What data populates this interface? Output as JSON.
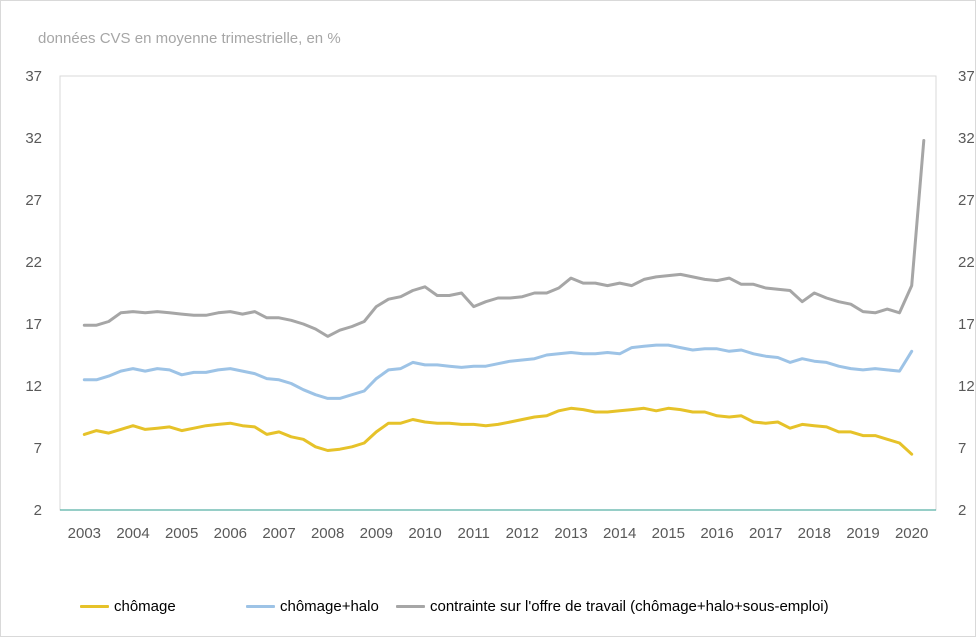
{
  "chart_data": {
    "type": "line",
    "title": "",
    "subtitle": "données CVS en moyenne trimestrielle, en %",
    "xlabel": "",
    "ylabel": "",
    "ylim": [
      2,
      37
    ],
    "yticks": [
      2,
      7,
      12,
      17,
      22,
      27,
      32,
      37
    ],
    "y_axis_both_sides": true,
    "xlim": [
      2002.5,
      2020.5
    ],
    "xticks": [
      "2003",
      "2004",
      "2005",
      "2006",
      "2007",
      "2008",
      "2009",
      "2010",
      "2011",
      "2012",
      "2013",
      "2014",
      "2015",
      "2016",
      "2017",
      "2018",
      "2019",
      "2020"
    ],
    "grid": false,
    "legend": "bottom",
    "x": [
      2003.0,
      2003.25,
      2003.5,
      2003.75,
      2004.0,
      2004.25,
      2004.5,
      2004.75,
      2005.0,
      2005.25,
      2005.5,
      2005.75,
      2006.0,
      2006.25,
      2006.5,
      2006.75,
      2007.0,
      2007.25,
      2007.5,
      2007.75,
      2008.0,
      2008.25,
      2008.5,
      2008.75,
      2009.0,
      2009.25,
      2009.5,
      2009.75,
      2010.0,
      2010.25,
      2010.5,
      2010.75,
      2011.0,
      2011.25,
      2011.5,
      2011.75,
      2012.0,
      2012.25,
      2012.5,
      2012.75,
      2013.0,
      2013.25,
      2013.5,
      2013.75,
      2014.0,
      2014.25,
      2014.5,
      2014.75,
      2015.0,
      2015.25,
      2015.5,
      2015.75,
      2016.0,
      2016.25,
      2016.5,
      2016.75,
      2017.0,
      2017.25,
      2017.5,
      2017.75,
      2018.0,
      2018.25,
      2018.5,
      2018.75,
      2019.0,
      2019.25,
      2019.5,
      2019.75,
      2020.0,
      2020.25
    ],
    "series": [
      {
        "name": "chômage",
        "color": "#e6c229",
        "values": [
          8.1,
          8.4,
          8.2,
          8.5,
          8.8,
          8.5,
          8.6,
          8.7,
          8.4,
          8.6,
          8.8,
          8.9,
          9.0,
          8.8,
          8.7,
          8.1,
          8.3,
          7.9,
          7.7,
          7.1,
          6.8,
          6.9,
          7.1,
          7.4,
          8.3,
          9.0,
          9.0,
          9.3,
          9.1,
          9.0,
          9.0,
          8.9,
          8.9,
          8.8,
          8.9,
          9.1,
          9.3,
          9.5,
          9.6,
          10.0,
          10.2,
          10.1,
          9.9,
          9.9,
          10.0,
          10.1,
          10.2,
          10.0,
          10.2,
          10.1,
          9.9,
          9.9,
          9.6,
          9.5,
          9.6,
          9.1,
          9.0,
          9.1,
          8.6,
          8.9,
          8.8,
          8.7,
          8.3,
          8.3,
          8.0,
          8.0,
          7.7,
          7.4,
          6.5,
          null
        ]
      },
      {
        "name": "chômage+halo",
        "color": "#9dc3e6",
        "values": [
          12.5,
          12.5,
          12.8,
          13.2,
          13.4,
          13.2,
          13.4,
          13.3,
          12.9,
          13.1,
          13.1,
          13.3,
          13.4,
          13.2,
          13.0,
          12.6,
          12.5,
          12.2,
          11.7,
          11.3,
          11.0,
          11.0,
          11.3,
          11.6,
          12.6,
          13.3,
          13.4,
          13.9,
          13.7,
          13.7,
          13.6,
          13.5,
          13.6,
          13.6,
          13.8,
          14.0,
          14.1,
          14.2,
          14.5,
          14.6,
          14.7,
          14.6,
          14.6,
          14.7,
          14.6,
          15.1,
          15.2,
          15.3,
          15.3,
          15.1,
          14.9,
          15.0,
          15.0,
          14.8,
          14.9,
          14.6,
          14.4,
          14.3,
          13.9,
          14.2,
          14.0,
          13.9,
          13.6,
          13.4,
          13.3,
          13.4,
          13.3,
          13.2,
          14.8,
          null
        ]
      },
      {
        "name": "contrainte sur l'offre de travail (chômage+halo+sous-emploi)",
        "color": "#a6a6a6",
        "values": [
          16.9,
          16.9,
          17.2,
          17.9,
          18.0,
          17.9,
          18.0,
          17.9,
          17.8,
          17.7,
          17.7,
          17.9,
          18.0,
          17.8,
          18.0,
          17.5,
          17.5,
          17.3,
          17.0,
          16.6,
          16.0,
          16.5,
          16.8,
          17.2,
          18.4,
          19.0,
          19.2,
          19.7,
          20.0,
          19.3,
          19.3,
          19.5,
          18.4,
          18.8,
          19.1,
          19.1,
          19.2,
          19.5,
          19.5,
          19.9,
          20.7,
          20.3,
          20.3,
          20.1,
          20.3,
          20.1,
          20.6,
          20.8,
          20.9,
          21.0,
          20.8,
          20.6,
          20.5,
          20.7,
          20.2,
          20.2,
          19.9,
          19.8,
          19.7,
          18.8,
          19.5,
          19.1,
          18.8,
          18.6,
          18.0,
          17.9,
          18.2,
          17.9,
          20.1,
          31.8
        ]
      }
    ]
  }
}
